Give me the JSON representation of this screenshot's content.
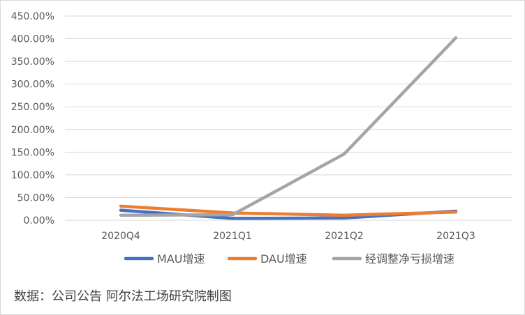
{
  "chart_data": {
    "type": "line",
    "categories": [
      "2020Q4",
      "2021Q1",
      "2021Q2",
      "2021Q3"
    ],
    "series": [
      {
        "name": "MAU增速",
        "values": [
          0.22,
          0.04,
          0.05,
          0.2
        ],
        "color": "#4472c4"
      },
      {
        "name": "DAU增速",
        "values": [
          0.31,
          0.16,
          0.11,
          0.18
        ],
        "color": "#ed7d31"
      },
      {
        "name": "经调整净亏损增速",
        "values": [
          0.11,
          0.12,
          1.46,
          4.02
        ],
        "color": "#a5a5a5"
      }
    ],
    "ylim": [
      0,
      4.5
    ],
    "yticks": [
      "0.00%",
      "50.00%",
      "100.00%",
      "150.00%",
      "200.00%",
      "250.00%",
      "300.00%",
      "350.00%",
      "400.00%",
      "450.00%"
    ],
    "grid": true,
    "legend": "bottom",
    "title": "",
    "xlabel": "",
    "ylabel": ""
  },
  "source_text": "数据：公司公告 阿尔法工场研究院制图"
}
